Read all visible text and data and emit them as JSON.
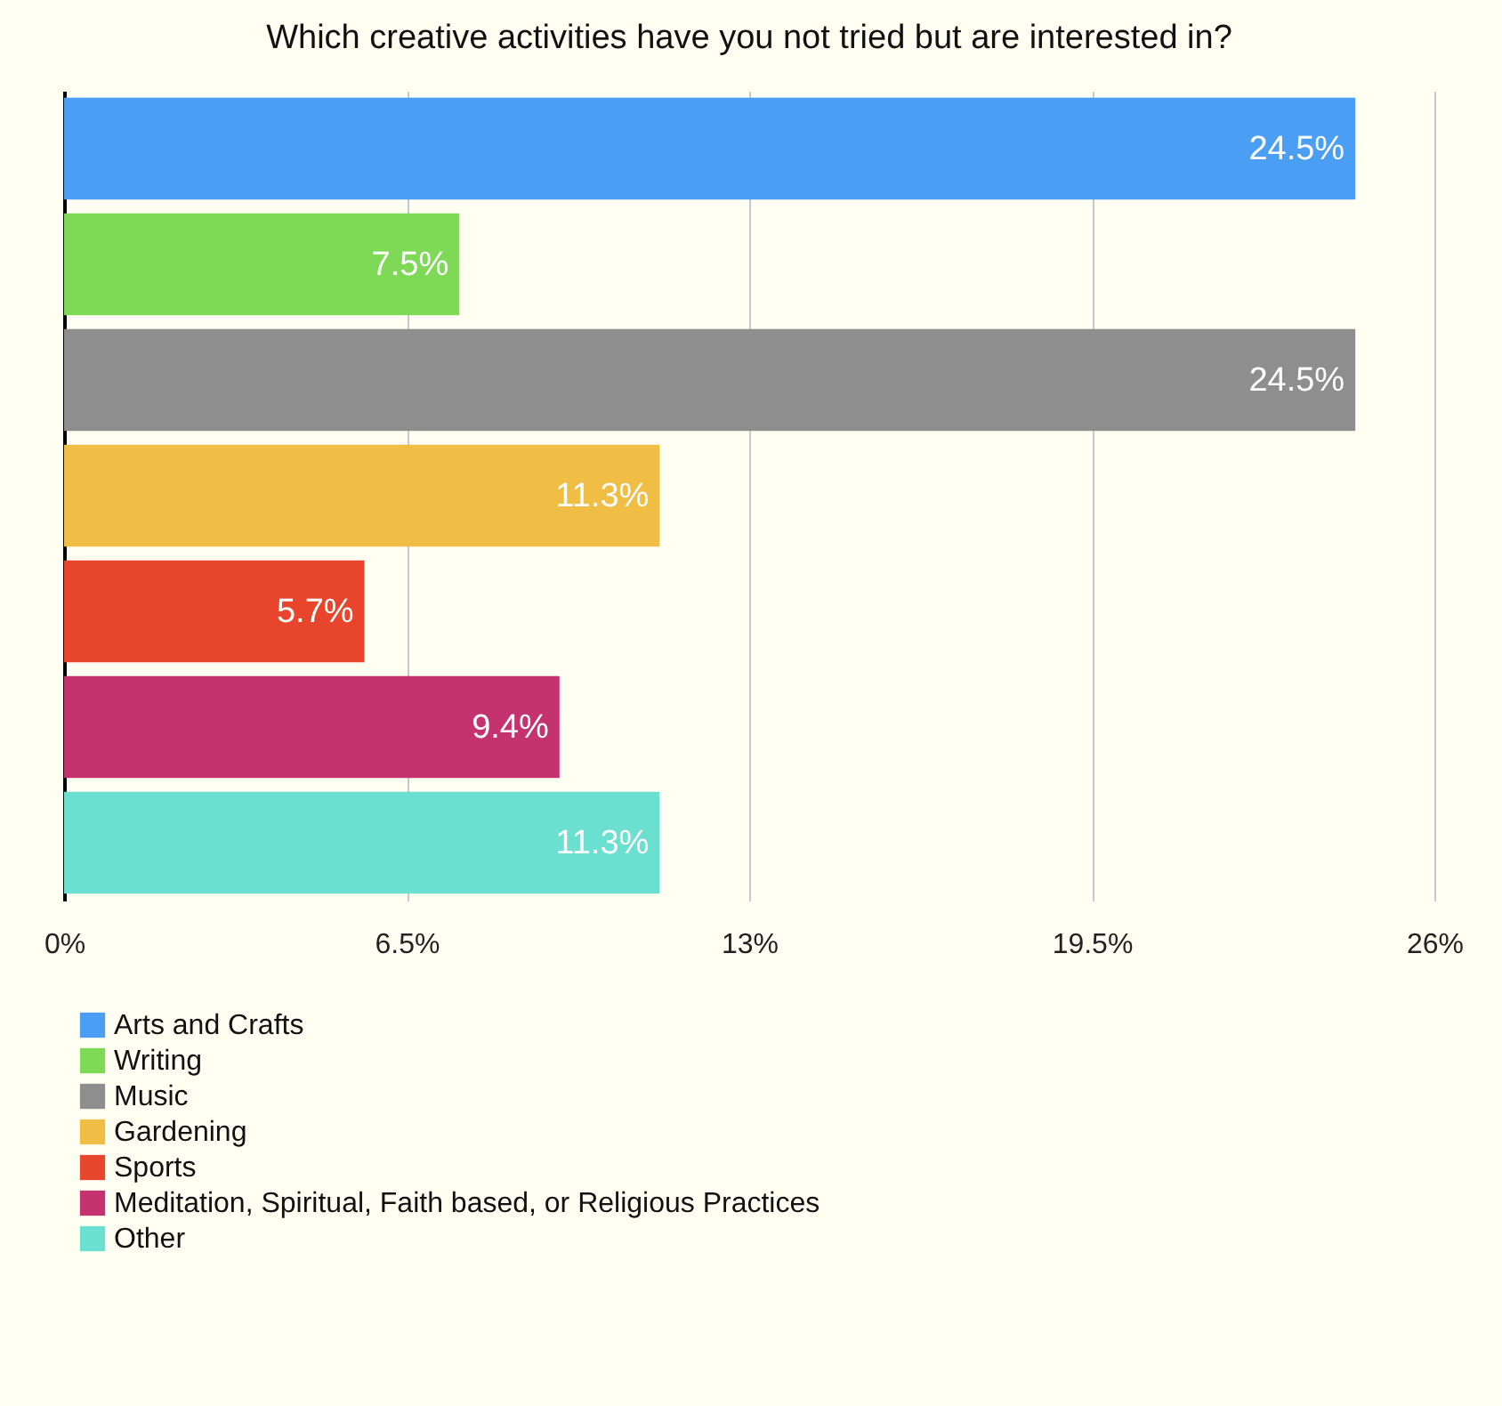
{
  "chart_data": {
    "type": "bar",
    "orientation": "horizontal",
    "title": "Which creative activities have you not tried but are interested in?",
    "categories": [
      null,
      null,
      null,
      null,
      null,
      null,
      null
    ],
    "series": [
      {
        "name": "Arts and Crafts",
        "color": "#4a9ff5",
        "values": [
          24.5,
          null,
          null,
          null,
          null,
          null,
          null
        ],
        "value_labels": [
          "24.5%",
          null,
          null,
          null,
          null,
          null,
          null
        ]
      },
      {
        "name": "Writing",
        "color": "#7ed957",
        "values": [
          null,
          7.5,
          null,
          null,
          null,
          null,
          null
        ],
        "value_labels": [
          null,
          "7.5%",
          null,
          null,
          null,
          null,
          null
        ]
      },
      {
        "name": "Music",
        "color": "#8e8e8e",
        "values": [
          null,
          null,
          24.5,
          null,
          null,
          null,
          null
        ],
        "value_labels": [
          null,
          null,
          "24.5%",
          null,
          null,
          null,
          null
        ]
      },
      {
        "name": "Gardening",
        "color": "#f0bd45",
        "values": [
          null,
          null,
          null,
          11.3,
          null,
          null,
          null
        ],
        "value_labels": [
          null,
          null,
          null,
          "11.3%",
          null,
          null,
          null
        ]
      },
      {
        "name": "Sports",
        "color": "#e8462c",
        "values": [
          null,
          null,
          null,
          null,
          5.7,
          null,
          null
        ],
        "value_labels": [
          null,
          null,
          null,
          null,
          "5.7%",
          null,
          null
        ]
      },
      {
        "name": "Meditation, Spiritual, Faith based, or Religious Practices",
        "color": "#c4326f",
        "values": [
          null,
          null,
          null,
          null,
          null,
          9.4,
          null
        ],
        "value_labels": [
          null,
          null,
          null,
          null,
          null,
          "9.4%",
          null
        ]
      },
      {
        "name": "Other",
        "color": "#6ce0d0",
        "values": [
          null,
          null,
          null,
          null,
          null,
          null,
          11.3
        ],
        "value_labels": [
          null,
          null,
          null,
          null,
          null,
          null,
          "11.3%"
        ]
      }
    ],
    "xlim": [
      0,
      26
    ],
    "xticks": [
      {
        "value": 0,
        "label": "0%"
      },
      {
        "value": 6.5,
        "label": "6.5%"
      },
      {
        "value": 13,
        "label": "13%"
      },
      {
        "value": 19.5,
        "label": "19.5%"
      },
      {
        "value": 26,
        "label": "26%"
      }
    ],
    "grid": "x",
    "legend": "bottom left",
    "tick_labels": "x"
  }
}
